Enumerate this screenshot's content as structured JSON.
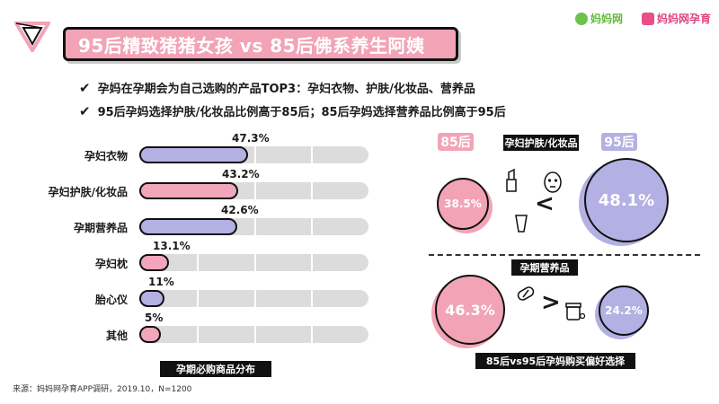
{
  "header": {
    "title": "95后精致猪猪女孩 vs 85后佛系养生阿姨",
    "brand_left": "妈妈网",
    "brand_right": "妈妈网孕育"
  },
  "bullets": [
    "孕妈在孕期会为自己选购的产品TOP3：孕妇衣物、护肤/化妆品、营养品",
    "95后孕妈选择护肤/化妆品比例高于85后；85后孕妈选择营养品比例高于95后"
  ],
  "chart_data": [
    {
      "type": "bar",
      "orientation": "horizontal",
      "title": "孕期必购商品分布",
      "categories": [
        "孕妇衣物",
        "孕妇护肤/化妆品",
        "孕期营养品",
        "孕妇枕",
        "胎心仪",
        "其他"
      ],
      "values": [
        47.3,
        43.2,
        42.6,
        13.1,
        11,
        5
      ],
      "labels": [
        "47.3%",
        "43.2%",
        "42.6%",
        "13.1%",
        "11%",
        "5%"
      ],
      "fill_colors": [
        "#b3b0e3",
        "#f2a6bb",
        "#b3b0e3",
        "#f2a6bb",
        "#b3b0e3",
        "#f2a6bb"
      ],
      "xlim": [
        0,
        100
      ]
    },
    {
      "type": "bubble-comparison",
      "title": "85后vs95后孕妈购买偏好选择",
      "groups": [
        {
          "category": "孕妇护肤/化妆品",
          "series": [
            {
              "name": "85后",
              "value": 38.5,
              "label": "38.5%",
              "color": "#f3a3b6"
            },
            {
              "name": "95后",
              "value": 48.1,
              "label": "48.1%",
              "color": "#b3b0e3"
            }
          ],
          "comparison": "<"
        },
        {
          "category": "孕期营养品",
          "series": [
            {
              "name": "85后",
              "value": 46.3,
              "label": "46.3%",
              "color": "#f3a3b6"
            },
            {
              "name": "95后",
              "value": 24.2,
              "label": "24.2%",
              "color": "#b3b0e3"
            }
          ],
          "comparison": ">"
        }
      ]
    }
  ],
  "source": "来源：妈妈网孕育APP调研，2019.10，N=1200"
}
